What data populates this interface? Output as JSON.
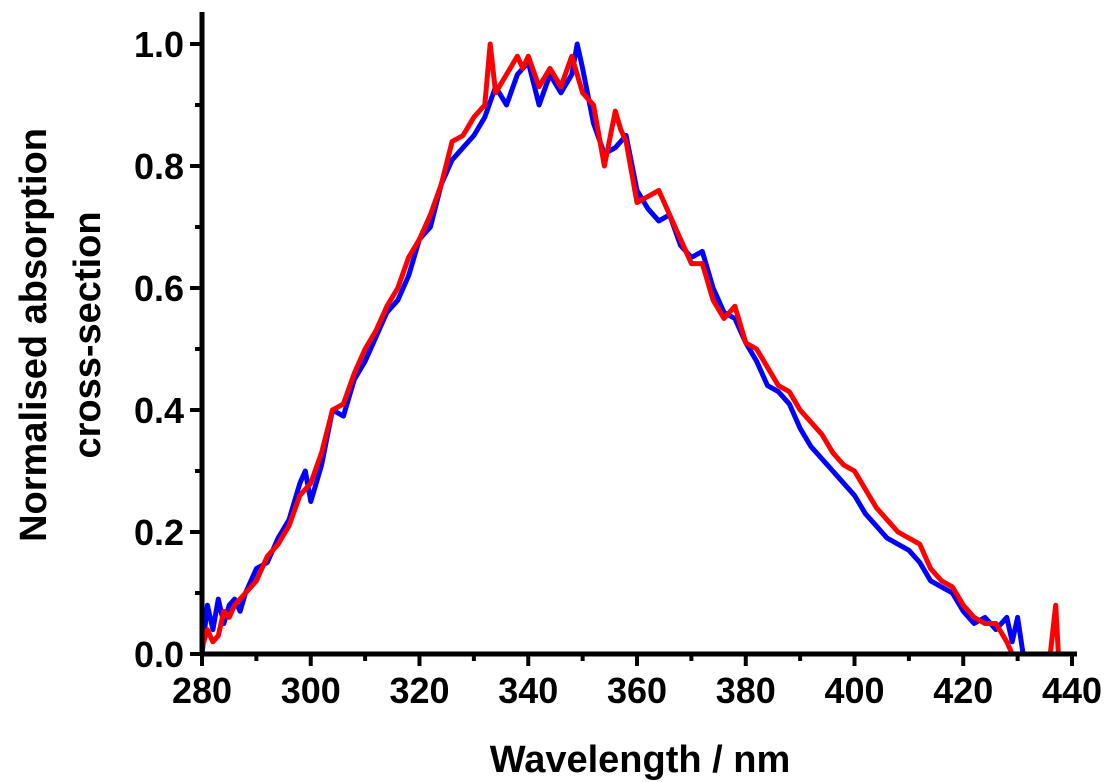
{
  "chart_data": {
    "type": "line",
    "title": "",
    "xlabel": "Wavelength / nm",
    "ylabel_line1": "Normalised absorption",
    "ylabel_line2": "cross-section",
    "xlim": [
      280,
      440
    ],
    "ylim": [
      0,
      1.0
    ],
    "x_ticks": [
      "280",
      "300",
      "320",
      "340",
      "360",
      "380",
      "400",
      "420",
      "440"
    ],
    "y_ticks": [
      "0.0",
      "0.2",
      "0.4",
      "0.6",
      "0.8",
      "1.0"
    ],
    "grid": false,
    "legend": "none",
    "series": [
      {
        "color": "#0000ff",
        "x": [
          280,
          281,
          282,
          283,
          284,
          285,
          286,
          287,
          288,
          290,
          292,
          294,
          296,
          298,
          299,
          300,
          302,
          304,
          306,
          308,
          310,
          312,
          314,
          316,
          318,
          320,
          322,
          324,
          326,
          328,
          330,
          332,
          334,
          336,
          338,
          340,
          342,
          344,
          346,
          348,
          349,
          350,
          352,
          354,
          356,
          358,
          360,
          362,
          364,
          366,
          368,
          370,
          372,
          374,
          376,
          378,
          380,
          382,
          384,
          386,
          388,
          390,
          392,
          394,
          396,
          398,
          400,
          402,
          404,
          406,
          408,
          410,
          412,
          414,
          416,
          418,
          420,
          422,
          424,
          426,
          428,
          429,
          430,
          431,
          432
        ],
        "y": [
          0.0,
          0.08,
          0.04,
          0.09,
          0.05,
          0.08,
          0.09,
          0.07,
          0.1,
          0.14,
          0.15,
          0.19,
          0.22,
          0.28,
          0.3,
          0.25,
          0.31,
          0.4,
          0.39,
          0.45,
          0.48,
          0.52,
          0.56,
          0.58,
          0.62,
          0.68,
          0.7,
          0.77,
          0.81,
          0.83,
          0.85,
          0.88,
          0.93,
          0.9,
          0.95,
          0.97,
          0.9,
          0.95,
          0.92,
          0.95,
          1.0,
          0.96,
          0.87,
          0.82,
          0.83,
          0.85,
          0.76,
          0.73,
          0.71,
          0.72,
          0.67,
          0.65,
          0.66,
          0.6,
          0.56,
          0.55,
          0.51,
          0.48,
          0.44,
          0.43,
          0.41,
          0.37,
          0.34,
          0.32,
          0.3,
          0.28,
          0.26,
          0.23,
          0.21,
          0.19,
          0.18,
          0.17,
          0.15,
          0.12,
          0.11,
          0.1,
          0.07,
          0.05,
          0.06,
          0.04,
          0.06,
          0.02,
          0.06,
          0.0,
          0.0
        ]
      },
      {
        "color": "#ff0000",
        "x": [
          280,
          281,
          282,
          283,
          284,
          285,
          286,
          288,
          290,
          292,
          294,
          296,
          298,
          300,
          302,
          304,
          306,
          308,
          310,
          312,
          314,
          316,
          318,
          320,
          322,
          324,
          326,
          328,
          330,
          332,
          333,
          334,
          336,
          338,
          339,
          340,
          342,
          344,
          346,
          348,
          350,
          352,
          354,
          356,
          357,
          358,
          360,
          362,
          364,
          366,
          368,
          370,
          372,
          374,
          376,
          378,
          380,
          382,
          384,
          386,
          388,
          390,
          392,
          394,
          396,
          398,
          400,
          402,
          404,
          406,
          408,
          410,
          412,
          414,
          416,
          418,
          420,
          422,
          424,
          426,
          428,
          429,
          436,
          437,
          437.5
        ],
        "y": [
          0.01,
          0.04,
          0.02,
          0.03,
          0.07,
          0.06,
          0.08,
          0.1,
          0.12,
          0.16,
          0.18,
          0.21,
          0.26,
          0.28,
          0.33,
          0.4,
          0.41,
          0.46,
          0.5,
          0.53,
          0.57,
          0.6,
          0.65,
          0.68,
          0.72,
          0.77,
          0.84,
          0.85,
          0.88,
          0.9,
          1.0,
          0.92,
          0.95,
          0.98,
          0.96,
          0.98,
          0.93,
          0.96,
          0.93,
          0.98,
          0.92,
          0.9,
          0.8,
          0.89,
          0.86,
          0.84,
          0.74,
          0.75,
          0.76,
          0.72,
          0.68,
          0.64,
          0.64,
          0.58,
          0.55,
          0.57,
          0.51,
          0.5,
          0.47,
          0.44,
          0.43,
          0.4,
          0.38,
          0.36,
          0.33,
          0.31,
          0.3,
          0.27,
          0.24,
          0.22,
          0.2,
          0.19,
          0.18,
          0.14,
          0.12,
          0.11,
          0.08,
          0.06,
          0.05,
          0.05,
          0.02,
          0.0,
          0.0,
          0.08,
          0.0
        ]
      }
    ]
  }
}
